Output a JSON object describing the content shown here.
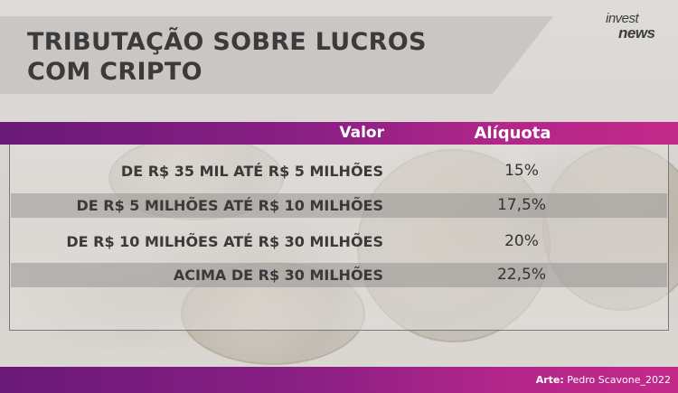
{
  "title": "TRIBUTAÇÃO SOBRE LUCROS COM CRIPTO",
  "logo": {
    "line1": "invest",
    "line2": "news"
  },
  "table": {
    "headers": {
      "valor": "Valor",
      "aliquota": "Alíquota"
    },
    "rows": [
      {
        "valor": "DE R$ 35 MIL ATÉ R$ 5 MILHÕES",
        "aliquota": "15%"
      },
      {
        "valor": "DE R$ 5 MILHÕES ATÉ R$ 10 MILHÕES",
        "aliquota": "17,5%"
      },
      {
        "valor": "DE R$ 10 MILHÕES ATÉ R$ 30 MILHÕES",
        "aliquota": "20%"
      },
      {
        "valor": "ACIMA DE R$ 30 MILHÕES",
        "aliquota": "22,5%"
      }
    ]
  },
  "credit": {
    "label": "Arte:",
    "author": "Pedro Scavone_2022"
  },
  "colors": {
    "accent_start": "#6a1a78",
    "accent_end": "#c32a8a",
    "text_dark": "#3a3a3a"
  }
}
